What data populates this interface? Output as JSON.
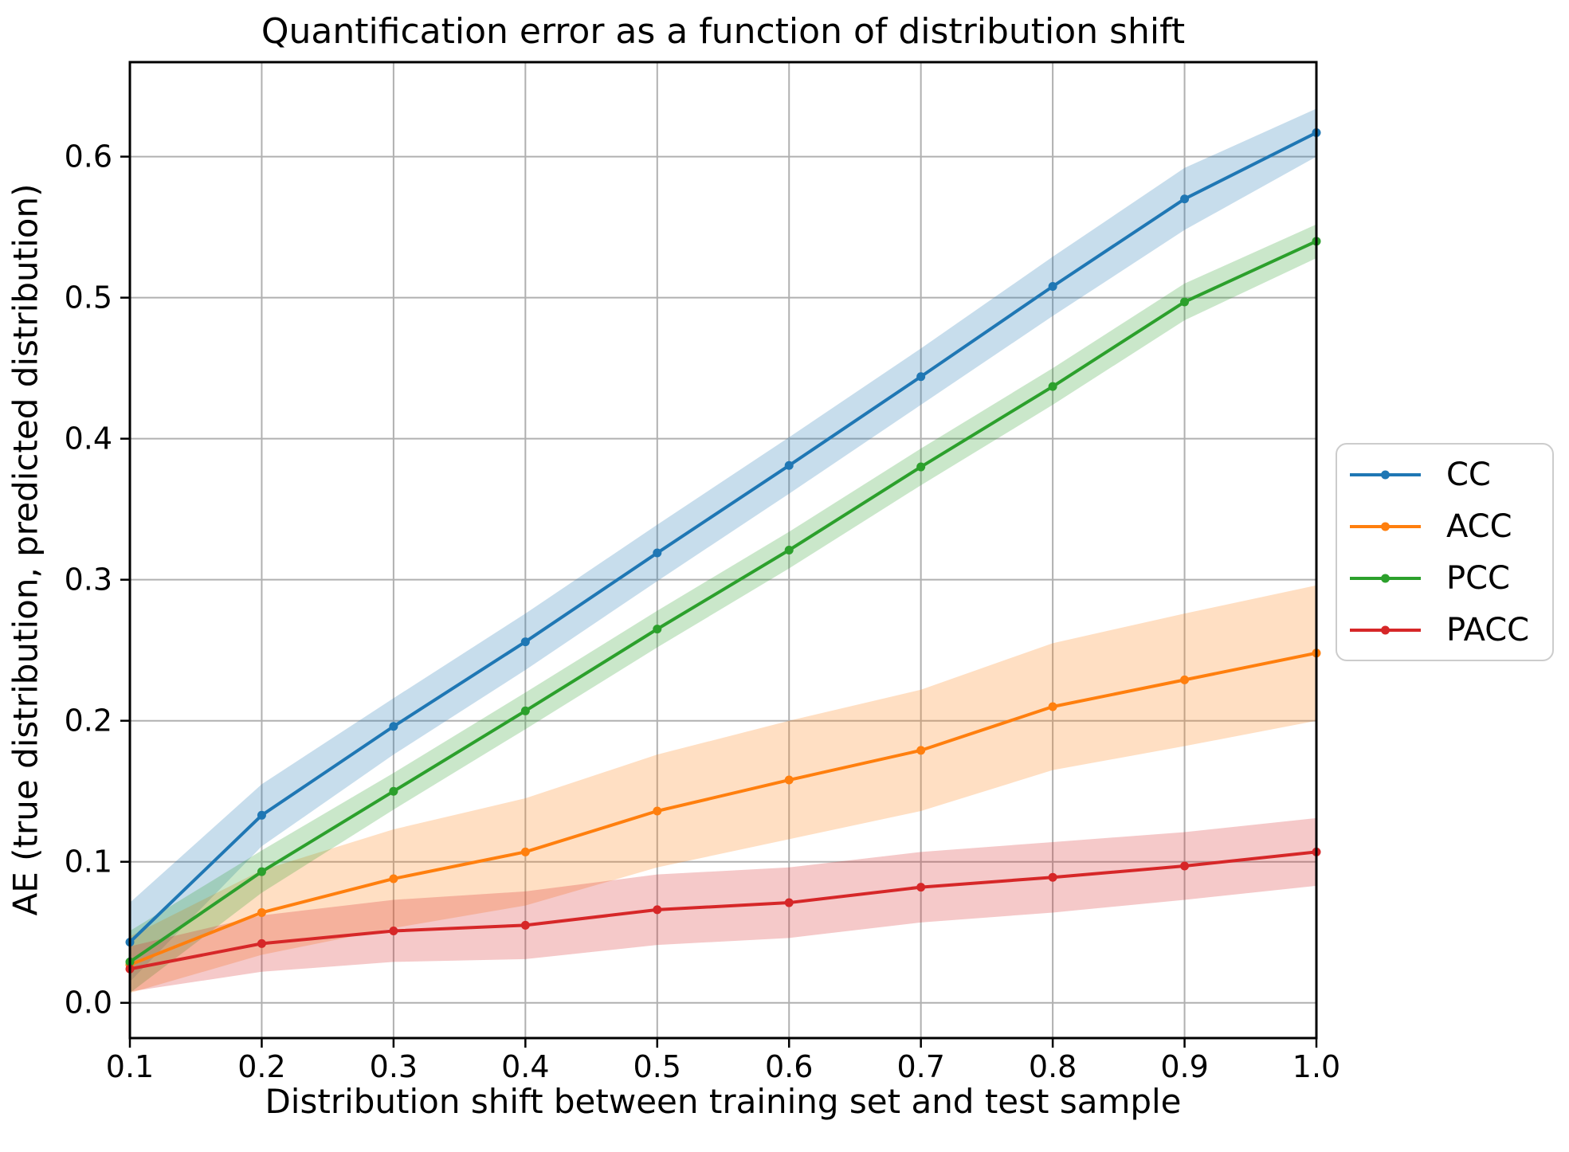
{
  "chart_data": {
    "type": "line",
    "title": "Quantification error as a function of distribution shift",
    "xlabel": "Distribution shift between training set and test sample",
    "ylabel": "AE (true distribution, predicted distribution)",
    "x": [
      0.1,
      0.2,
      0.3,
      0.4,
      0.5,
      0.6,
      0.7,
      0.8,
      0.9,
      1.0
    ],
    "xtick_labels": [
      "0.1",
      "0.2",
      "0.3",
      "0.4",
      "0.5",
      "0.6",
      "0.7",
      "0.8",
      "0.9",
      "1.0"
    ],
    "ytick_values": [
      0.0,
      0.1,
      0.2,
      0.3,
      0.4,
      0.5,
      0.6
    ],
    "ytick_labels": [
      "0.0",
      "0.1",
      "0.2",
      "0.3",
      "0.4",
      "0.5",
      "0.6"
    ],
    "xlim": [
      0.1,
      1.0
    ],
    "ylim": [
      -0.025,
      0.667
    ],
    "grid": true,
    "grid_color": "#b0b0b0",
    "band_alpha": 0.25,
    "legend": {
      "position": "center-right-outside",
      "entries": [
        "CC",
        "ACC",
        "PCC",
        "PACC"
      ]
    },
    "series": [
      {
        "name": "CC",
        "color": "#1f77b4",
        "values": [
          0.043,
          0.133,
          0.196,
          0.256,
          0.319,
          0.381,
          0.444,
          0.508,
          0.57,
          0.617
        ],
        "ci": [
          0.028,
          0.022,
          0.02,
          0.02,
          0.02,
          0.02,
          0.02,
          0.021,
          0.022,
          0.017
        ]
      },
      {
        "name": "ACC",
        "color": "#ff7f0e",
        "values": [
          0.027,
          0.064,
          0.088,
          0.107,
          0.136,
          0.158,
          0.179,
          0.21,
          0.229,
          0.248
        ],
        "ci": [
          0.02,
          0.03,
          0.035,
          0.038,
          0.04,
          0.042,
          0.043,
          0.045,
          0.047,
          0.048
        ]
      },
      {
        "name": "PCC",
        "color": "#2ca02c",
        "values": [
          0.029,
          0.093,
          0.15,
          0.207,
          0.265,
          0.321,
          0.38,
          0.437,
          0.497,
          0.54
        ],
        "ci": [
          0.022,
          0.015,
          0.013,
          0.013,
          0.013,
          0.013,
          0.013,
          0.013,
          0.013,
          0.012
        ]
      },
      {
        "name": "PACC",
        "color": "#d62728",
        "values": [
          0.024,
          0.042,
          0.051,
          0.055,
          0.066,
          0.071,
          0.082,
          0.089,
          0.097,
          0.107
        ],
        "ci": [
          0.016,
          0.02,
          0.022,
          0.024,
          0.025,
          0.025,
          0.025,
          0.025,
          0.024,
          0.024
        ]
      }
    ]
  }
}
